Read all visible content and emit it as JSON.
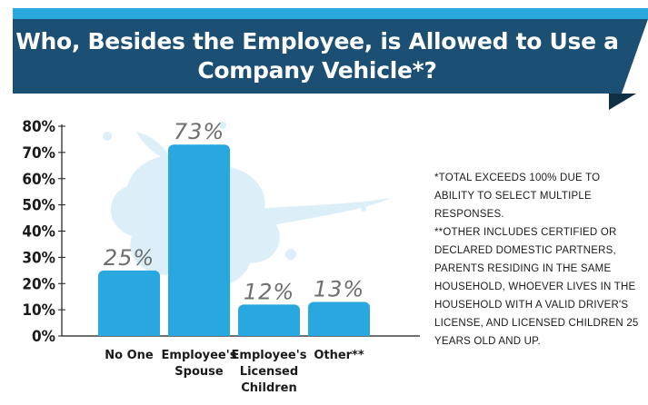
{
  "header": {
    "title_line1": "Who, Besides the Employee, is Allowed to Use a",
    "title_line2": "Company Vehicle*?"
  },
  "footnotes": {
    "note1": "*TOTAL EXCEEDS 100% DUE TO ABILITY TO SELECT MULTIPLE RESPONSES.",
    "note2": "**OTHER INCLUDES CERTIFIED OR DECLARED DOMESTIC PARTNERS, PARENTS RESIDING IN THE SAME HOUSEHOLD, WHOEVER LIVES IN THE HOUSEHOLD WITH A VALID DRIVER'S LICENSE, AND LICENSED CHILDREN 25 YEARS OLD AND UP."
  },
  "colors": {
    "bar": "#29a8e0",
    "banner": "#1b4f73",
    "splash": "#cfe8f4"
  },
  "chart_data": {
    "type": "bar",
    "categories": [
      [
        "No One"
      ],
      [
        "Employee's",
        "Spouse"
      ],
      [
        "Employee's",
        "Licensed",
        "Children"
      ],
      [
        "Other**"
      ]
    ],
    "values": [
      25,
      73,
      12,
      13
    ],
    "value_labels": [
      "25%",
      "73%",
      "12%",
      "13%"
    ],
    "yticks": [
      "0%",
      "10%",
      "20%",
      "30%",
      "40%",
      "50%",
      "60%",
      "70%",
      "80%"
    ],
    "ylim": [
      0,
      80
    ],
    "grid": false,
    "title": "Who, Besides the Employee, is Allowed to Use a Company Vehicle*?"
  }
}
